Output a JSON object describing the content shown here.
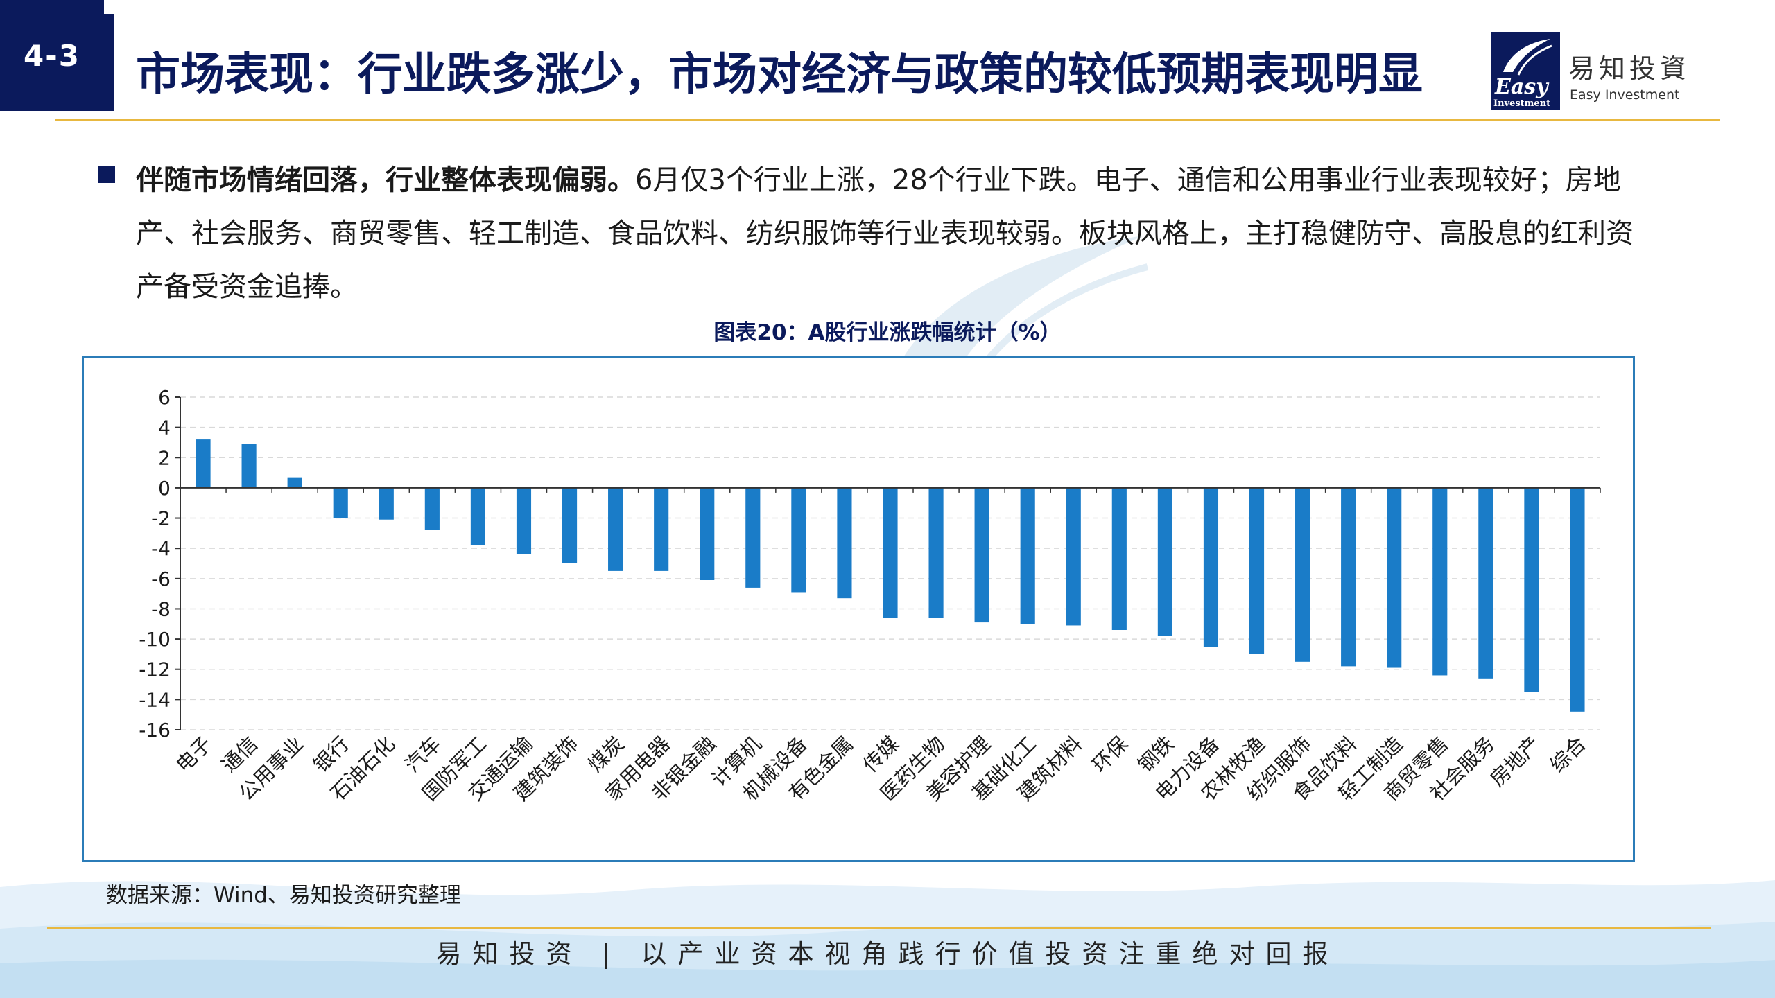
{
  "header": {
    "section_number": "4-3",
    "title": "市场表现：行业跌多涨少，市场对经济与政策的较低预期表现明显"
  },
  "logo": {
    "mark_text": "Easy",
    "mark_subtext": "Investment",
    "name_cn": "易知投資",
    "name_en": "Easy Investment"
  },
  "body": {
    "bold": "伴随市场情绪回落，行业整体表现偏弱。",
    "text": "6月仅3个行业上涨，28个行业下跌。电子、通信和公用事业行业表现较好；房地产、社会服务、商贸零售、轻工制造、食品饮料、纺织服饰等行业表现较弱。板块风格上，主打稳健防守、高股息的红利资产备受资金追捧。"
  },
  "chart_data": {
    "type": "bar",
    "title": "图表20：A股行业涨跌幅统计（%）",
    "categories": [
      "电子",
      "通信",
      "公用事业",
      "银行",
      "石油石化",
      "汽车",
      "国防军工",
      "交通运输",
      "建筑装饰",
      "煤炭",
      "家用电器",
      "非银金融",
      "计算机",
      "机械设备",
      "有色金属",
      "传媒",
      "医药生物",
      "美容护理",
      "基础化工",
      "建筑材料",
      "环保",
      "钢铁",
      "电力设备",
      "农林牧渔",
      "纺织服饰",
      "食品饮料",
      "轻工制造",
      "商贸零售",
      "社会服务",
      "房地产",
      "综合"
    ],
    "values": [
      3.2,
      2.9,
      0.7,
      -2.0,
      -2.1,
      -2.8,
      -3.8,
      -4.4,
      -5.0,
      -5.5,
      -5.5,
      -6.1,
      -6.6,
      -6.9,
      -7.3,
      -8.6,
      -8.6,
      -8.9,
      -9.0,
      -9.1,
      -9.4,
      -9.8,
      -10.5,
      -11.0,
      -11.5,
      -11.8,
      -11.9,
      -12.4,
      -12.6,
      -13.5,
      -14.8
    ],
    "ylim": [
      -16,
      6
    ],
    "yticks": [
      6,
      4,
      2,
      0,
      -2,
      -4,
      -6,
      -8,
      -10,
      -12,
      -14,
      -16
    ],
    "grid": true,
    "bar_color": "#1a7cc8"
  },
  "source": "数据来源：Wind、易知投资研究整理",
  "footer": "易知投资 | 以产业资本视角践行价值投资注重绝对回报"
}
